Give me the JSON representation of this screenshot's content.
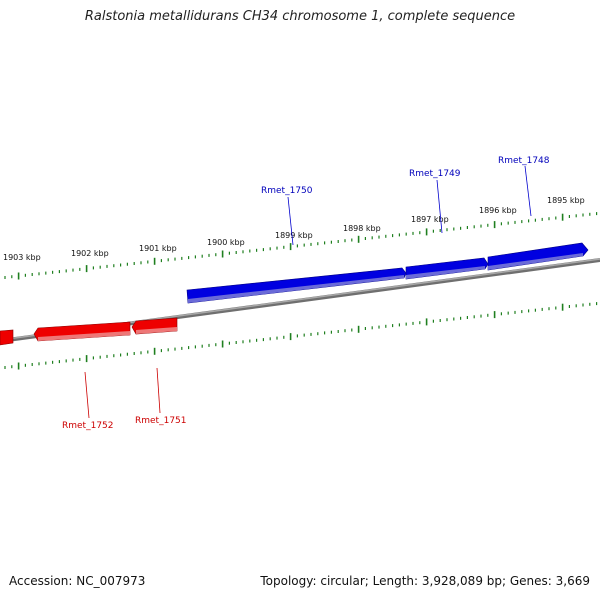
{
  "title": "Ralstonia metallidurans CH34 chromosome 1, complete sequence",
  "footer": {
    "accession": "Accession: NC_007973",
    "summary": "Topology: circular; Length: 3,928,089 bp; Genes: 3,669"
  },
  "scale_labels": [
    "1903 kbp",
    "1902 kbp",
    "1901 kbp",
    "1900 kbp",
    "1899 kbp",
    "1898 kbp",
    "1897 kbp",
    "1896 kbp",
    "1895 kbp"
  ],
  "genes": {
    "forward": [
      {
        "label": "Rmet_1750"
      },
      {
        "label": "Rmet_1749"
      },
      {
        "label": "Rmet_1748"
      }
    ],
    "reverse": [
      {
        "label": "Rmet_1752"
      },
      {
        "label": "Rmet_1751"
      }
    ]
  },
  "colors": {
    "forward_gene": "#0000dd",
    "reverse_gene": "#ee0000",
    "backbone": "#7f7f7f",
    "ticks": "#1f7f1f",
    "forward_label": "#0000bb",
    "reverse_label": "#cc0000"
  }
}
